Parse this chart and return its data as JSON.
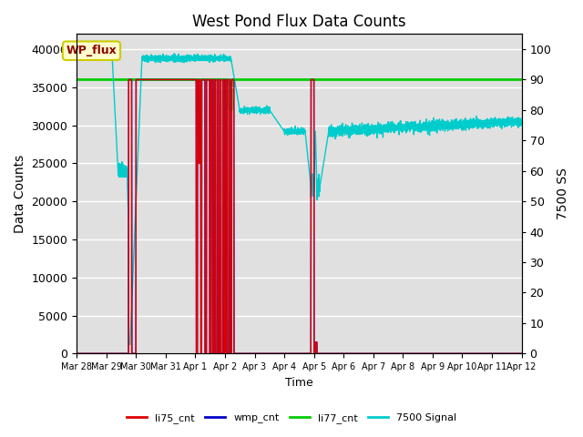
{
  "title": "West Pond Flux Data Counts",
  "xlabel": "Time",
  "ylabel_left": "Data Counts",
  "ylabel_right": "7500 SS",
  "ylim_left": [
    0,
    42000
  ],
  "ylim_right": [
    0,
    105
  ],
  "x_tick_labels": [
    "Mar 28",
    "Mar 29",
    "Mar 30",
    "Mar 31",
    "Apr 1",
    "Apr 2",
    "Apr 3",
    "Apr 4",
    "Apr 5",
    "Apr 6",
    "Apr 7",
    "Apr 8",
    "Apr 9",
    "Apr 10",
    "Apr 11",
    "Apr 12"
  ],
  "background_color": "#e0e0e0",
  "annotation_box_text": "WP_flux",
  "annotation_box_facecolor": "#ffffcc",
  "annotation_box_edgecolor": "#cccc00",
  "annotation_text_color": "#8b0000",
  "colors": {
    "li75_cnt": "#dd0000",
    "wmp_cnt": "#0000cc",
    "li77_cnt": "#00cc00",
    "signal_7500": "#00cccc"
  },
  "legend_labels": [
    "li75_cnt",
    "wmp_cnt",
    "li77_cnt",
    "7500 Signal"
  ]
}
